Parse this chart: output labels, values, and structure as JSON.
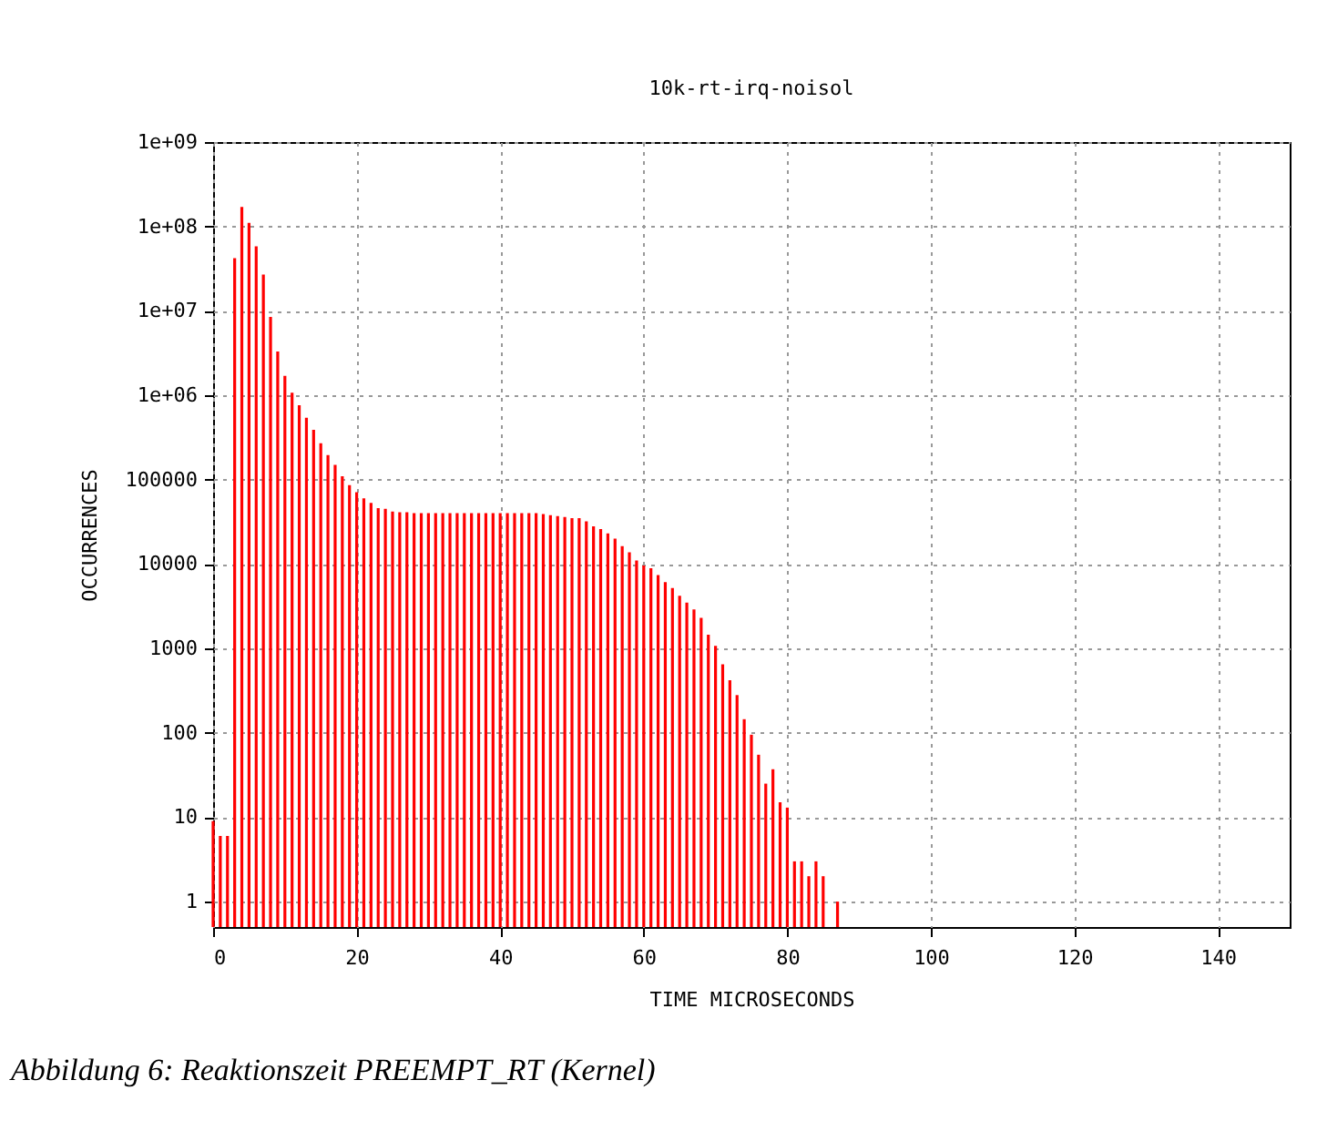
{
  "chart_data": {
    "type": "bar",
    "title": "10k-rt-irq-noisol",
    "xlabel": "TIME MICROSECONDS",
    "ylabel": "OCCURRENCES",
    "x": [
      0,
      1,
      2,
      3,
      4,
      5,
      6,
      7,
      8,
      9,
      10,
      11,
      12,
      13,
      14,
      15,
      16,
      17,
      18,
      19,
      20,
      21,
      22,
      23,
      24,
      25,
      26,
      27,
      28,
      29,
      30,
      31,
      32,
      33,
      34,
      35,
      36,
      37,
      38,
      39,
      40,
      41,
      42,
      43,
      44,
      45,
      46,
      47,
      48,
      49,
      50,
      51,
      52,
      53,
      54,
      55,
      56,
      57,
      58,
      59,
      60,
      61,
      62,
      63,
      64,
      65,
      66,
      67,
      68,
      69,
      70,
      71,
      72,
      73,
      74,
      75,
      76,
      77,
      78,
      79,
      80,
      81,
      82,
      83,
      84,
      85,
      87
    ],
    "values": [
      9,
      6,
      6,
      42000000,
      170000000,
      110000000,
      58000000,
      27000000,
      8500000,
      3300000,
      1700000,
      1070000,
      760000,
      540000,
      390000,
      270000,
      195000,
      150000,
      110000,
      86000,
      71000,
      60000,
      53000,
      46000,
      45000,
      42000,
      41000,
      41000,
      40000,
      40000,
      40000,
      40000,
      40000,
      40000,
      40000,
      40000,
      40000,
      40000,
      40000,
      40000,
      40000,
      40000,
      40000,
      40000,
      40000,
      40000,
      39000,
      38000,
      37000,
      36000,
      35000,
      35000,
      32000,
      28000,
      26000,
      23000,
      20000,
      16300,
      13800,
      11000,
      9600,
      8900,
      7400,
      6100,
      5200,
      4200,
      3500,
      2900,
      2300,
      1450,
      1070,
      650,
      420,
      280,
      145,
      95,
      55,
      25,
      37,
      15,
      13,
      3,
      3,
      2,
      3,
      2,
      1
    ],
    "color": "#ff0000",
    "log": true,
    "grid": true,
    "xlim": [
      0,
      150
    ],
    "xticks": [
      0,
      20,
      40,
      60,
      80,
      100,
      120,
      140
    ],
    "ylim": [
      0.5,
      1000000000
    ],
    "yticks": [
      1,
      10,
      100,
      1000,
      10000,
      100000,
      {
        "value": 1000000,
        "label": "1e+06"
      },
      {
        "value": 10000000,
        "label": "1e+07"
      },
      {
        "value": 100000000,
        "label": "1e+08"
      },
      {
        "value": 1000000000,
        "label": "1e+09"
      }
    ],
    "annotations": [
      "Abbildung 6: Reaktionszeit PREEMPT_RT (Kernel)"
    ]
  }
}
